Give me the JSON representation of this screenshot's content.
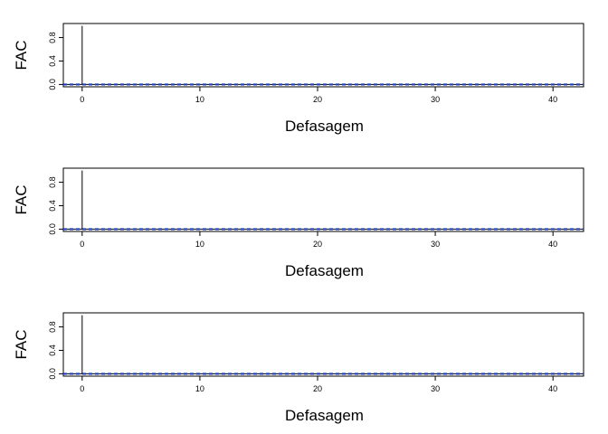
{
  "chart_data": [
    {
      "type": "bar",
      "title": "",
      "xlabel": "Defasagem",
      "ylabel": "FAC",
      "xlim": [
        -1.6,
        42.6
      ],
      "ylim": [
        -0.04,
        1.04
      ],
      "x_ticks": [
        0,
        10,
        20,
        30,
        40
      ],
      "y_ticks": [
        0.0,
        0.4,
        0.8
      ],
      "y_tick_labels": [
        "0.0",
        "0.4",
        "0.8"
      ],
      "grid": false,
      "lags": [
        0
      ],
      "values": [
        1.0
      ],
      "confidence_band": 0.006,
      "confidence_color": "#1f3fbf",
      "zero_line": 0.0
    },
    {
      "type": "bar",
      "title": "",
      "xlabel": "Defasagem",
      "ylabel": "FAC",
      "xlim": [
        -1.6,
        42.6
      ],
      "ylim": [
        -0.04,
        1.04
      ],
      "x_ticks": [
        0,
        10,
        20,
        30,
        40
      ],
      "y_ticks": [
        0.0,
        0.4,
        0.8
      ],
      "y_tick_labels": [
        "0.0",
        "0.4",
        "0.8"
      ],
      "grid": false,
      "lags": [
        0
      ],
      "values": [
        1.0
      ],
      "confidence_band": 0.006,
      "confidence_color": "#1f3fbf",
      "zero_line": 0.0
    },
    {
      "type": "bar",
      "title": "",
      "xlabel": "Defasagem",
      "ylabel": "FAC",
      "xlim": [
        -1.6,
        42.6
      ],
      "ylim": [
        -0.04,
        1.04
      ],
      "x_ticks": [
        0,
        10,
        20,
        30,
        40
      ],
      "y_ticks": [
        0.0,
        0.4,
        0.8
      ],
      "y_tick_labels": [
        "0.0",
        "0.4",
        "0.8"
      ],
      "grid": false,
      "lags": [
        0
      ],
      "values": [
        1.0
      ],
      "confidence_band": 0.006,
      "confidence_color": "#1f3fbf",
      "zero_line": 0.0
    }
  ]
}
